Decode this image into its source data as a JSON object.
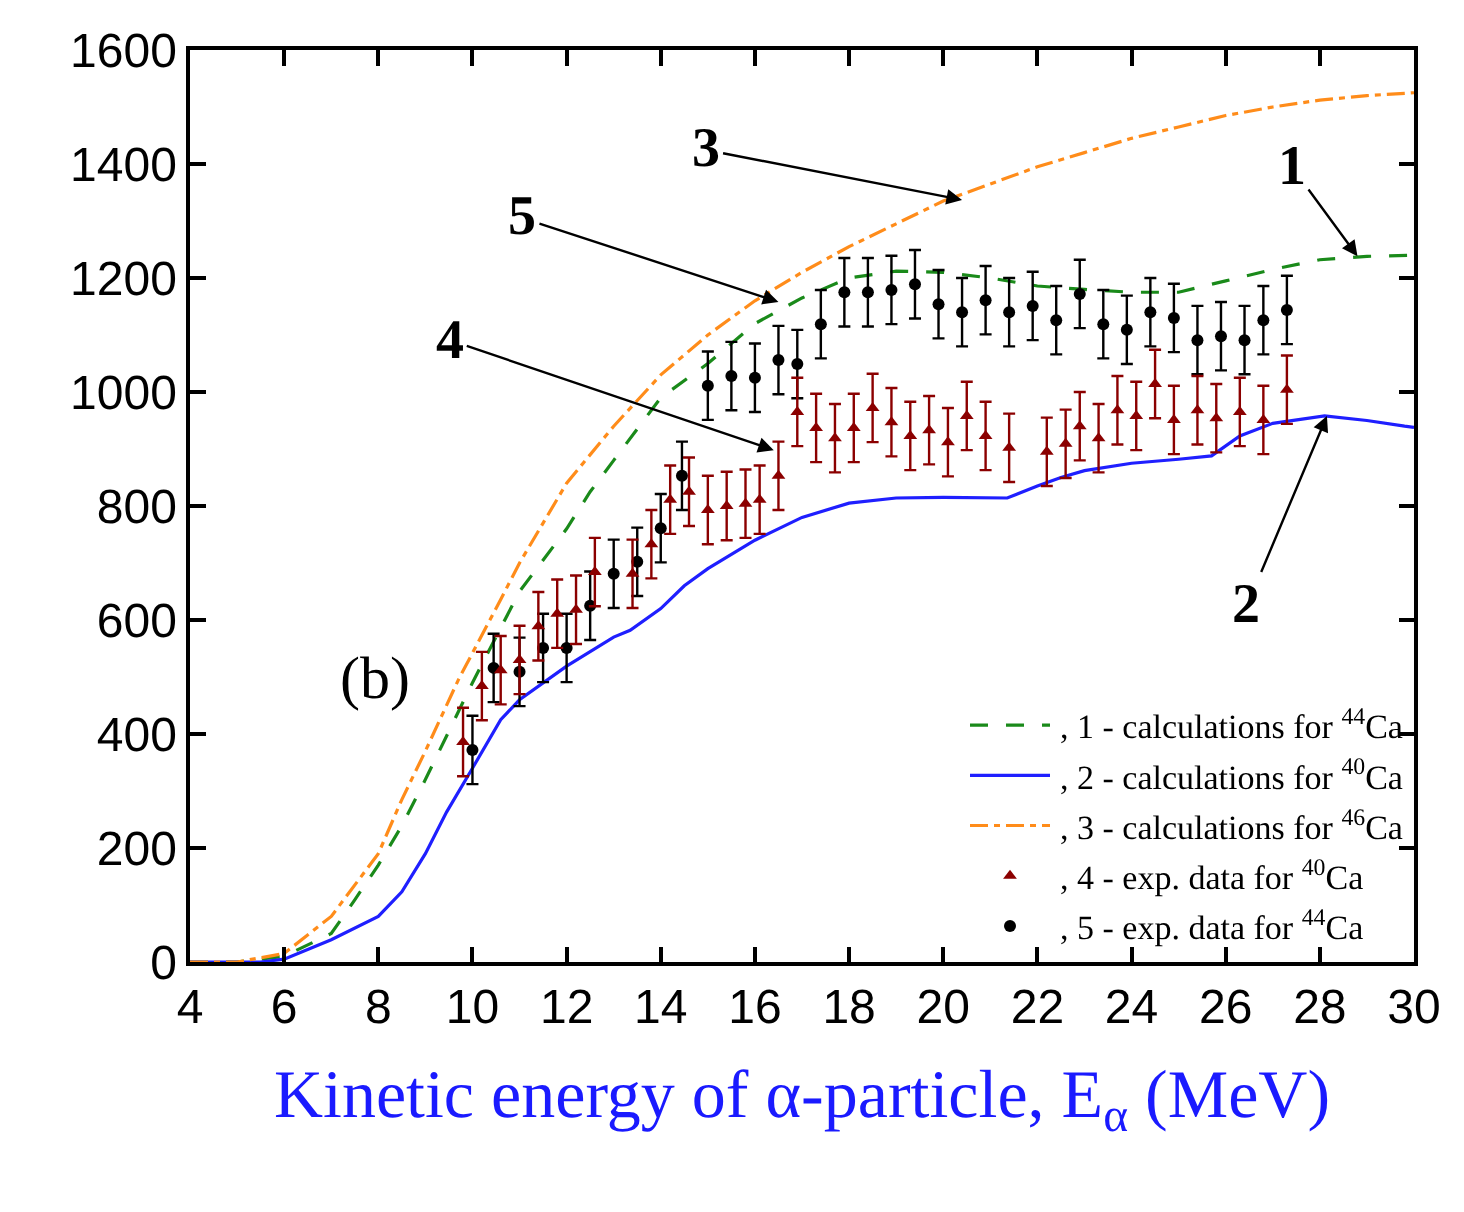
{
  "chart_data": {
    "type": "line",
    "xlabel": "Kinetic energy of α-particle, E$_{α}$ (MeV)",
    "xlim": [
      4,
      30
    ],
    "xticks": [
      4,
      6,
      8,
      10,
      12,
      14,
      16,
      18,
      20,
      22,
      24,
      26,
      28,
      30
    ],
    "ylim": [
      0,
      1600
    ],
    "yticks": [
      0,
      200,
      400,
      600,
      800,
      1000,
      1200,
      1400,
      1600
    ],
    "grid": false,
    "legend": "bottom right",
    "series": [
      {
        "name": ", 1 - calculations for $^{44}$Ca",
        "line_style": "dashed",
        "marker": "none",
        "color": "#1a8a1a",
        "x": [
          4,
          5,
          6,
          7,
          7.5,
          8,
          8.5,
          9,
          9.7,
          10,
          11,
          12,
          12.5,
          13,
          14,
          15,
          16,
          17,
          18,
          19,
          20,
          21,
          22,
          23,
          24,
          25,
          26,
          27,
          28,
          29,
          30
        ],
        "values": [
          0,
          0,
          10,
          50,
          109,
          170,
          239,
          320,
          439,
          490,
          650,
          760,
          825,
          880,
          990,
          1050,
          1120,
          1165,
          1200,
          1212,
          1210,
          1200,
          1186,
          1180,
          1175,
          1175,
          1195,
          1215,
          1232,
          1238,
          1240
        ]
      },
      {
        "name": ", 2 - calculations for $^{40}$Ca",
        "line_style": "solid",
        "marker": "none",
        "color": "#1f1fff",
        "x": [
          4,
          5.5,
          6,
          7,
          8,
          8.5,
          9,
          9.45,
          10,
          10.6,
          11,
          12,
          13,
          13.35,
          14,
          14.5,
          15,
          16,
          17,
          18,
          19,
          20,
          21.36,
          22,
          22.5,
          23,
          24,
          25,
          25.7,
          26.3,
          27,
          28.1,
          29,
          29.8,
          30
        ],
        "values": [
          0,
          0,
          5,
          39,
          80,
          123,
          190,
          263,
          340,
          425,
          460,
          519,
          570,
          582,
          620,
          660,
          690,
          740,
          780,
          805,
          814,
          815,
          814,
          835,
          850,
          862,
          875,
          882,
          888,
          923,
          945,
          958,
          950,
          940,
          938
        ]
      },
      {
        "name": ", 3 - calculations for $^{46}$Ca",
        "line_style": "dotted",
        "marker": "none",
        "color": "#ff8c1a",
        "x": [
          4,
          5,
          6,
          7,
          8,
          8.5,
          9,
          9.7,
          10.6,
          11,
          12,
          13,
          14,
          15,
          16,
          17,
          18,
          19,
          20,
          21,
          22,
          23,
          24,
          25,
          26,
          27,
          28,
          29,
          30
        ],
        "values": [
          0,
          0,
          15,
          80,
          190,
          285,
          370,
          495,
          636,
          700,
          840,
          940,
          1030,
          1100,
          1160,
          1210,
          1255,
          1295,
          1335,
          1365,
          1395,
          1420,
          1445,
          1465,
          1485,
          1500,
          1512,
          1520,
          1525
        ]
      },
      {
        "name": ", 4 - exp. data for $^{40}$Ca",
        "type": "scatter",
        "marker": "triangle",
        "color": "#8b0000",
        "x": [
          9.8,
          10.2,
          10.6,
          11.0,
          11.4,
          11.8,
          12.2,
          12.6,
          13.4,
          13.8,
          14.2,
          14.6,
          15.0,
          15.4,
          15.8,
          16.1,
          16.5,
          16.9,
          17.3,
          17.7,
          18.1,
          18.5,
          18.9,
          19.3,
          19.7,
          20.1,
          20.5,
          20.9,
          21.4,
          22.2,
          22.6,
          22.9,
          23.3,
          23.7,
          24.1,
          24.5,
          24.9,
          25.4,
          25.8,
          26.3,
          26.8,
          27.3
        ],
        "values": [
          386,
          484,
          512,
          530,
          589,
          611,
          618,
          684,
          681,
          733,
          811,
          825,
          793,
          800,
          804,
          811,
          853,
          965,
          937,
          919,
          937,
          972,
          947,
          923,
          933,
          912,
          958,
          923,
          902,
          895,
          909,
          940,
          919,
          968,
          958,
          1014,
          951,
          968,
          954,
          965,
          951,
          1004
        ],
        "errors": [
          60,
          60,
          60,
          60,
          60,
          60,
          60,
          60,
          60,
          60,
          60,
          60,
          60,
          60,
          60,
          60,
          60,
          60,
          60,
          60,
          60,
          60,
          60,
          60,
          60,
          60,
          60,
          60,
          60,
          60,
          60,
          60,
          60,
          60,
          60,
          60,
          60,
          60,
          60,
          60,
          60,
          60
        ]
      },
      {
        "name": ", 5 - exp. data for $^{44}$Ca",
        "type": "scatter",
        "marker": "circle",
        "color": "#000000",
        "x": [
          10.0,
          10.45,
          11.0,
          11.5,
          12.0,
          12.5,
          13.0,
          13.5,
          14.0,
          14.45,
          15.0,
          15.5,
          16.0,
          16.5,
          16.9,
          17.4,
          17.9,
          18.4,
          18.9,
          19.4,
          19.9,
          20.4,
          20.9,
          21.4,
          21.9,
          22.4,
          22.9,
          23.4,
          23.9,
          24.4,
          24.9,
          25.4,
          25.9,
          26.4,
          26.8,
          27.3
        ],
        "values": [
          372,
          516,
          509,
          551,
          551,
          625,
          681,
          702,
          761,
          853,
          1011,
          1028,
          1025,
          1056,
          1049,
          1119,
          1175,
          1175,
          1179,
          1189,
          1154,
          1140,
          1161,
          1140,
          1151,
          1126,
          1172,
          1119,
          1109,
          1140,
          1130,
          1091,
          1098,
          1091,
          1126,
          1144
        ],
        "errors": [
          60,
          60,
          60,
          60,
          60,
          60,
          60,
          60,
          60,
          60,
          60,
          60,
          60,
          60,
          60,
          60,
          60,
          60,
          60,
          60,
          60,
          60,
          60,
          60,
          60,
          60,
          60,
          60,
          60,
          60,
          60,
          60,
          60,
          60,
          60,
          60
        ]
      }
    ],
    "annotations": [
      {
        "text": "1",
        "x": 28.8,
        "y": 1238
      },
      {
        "text": "2",
        "x": 28.15,
        "y": 958
      },
      {
        "text": "3",
        "x": 20.4,
        "y": 1337
      },
      {
        "text": "4",
        "x": 16.4,
        "y": 898
      },
      {
        "text": "5",
        "x": 16.5,
        "y": 1158
      },
      "(b)"
    ]
  }
}
